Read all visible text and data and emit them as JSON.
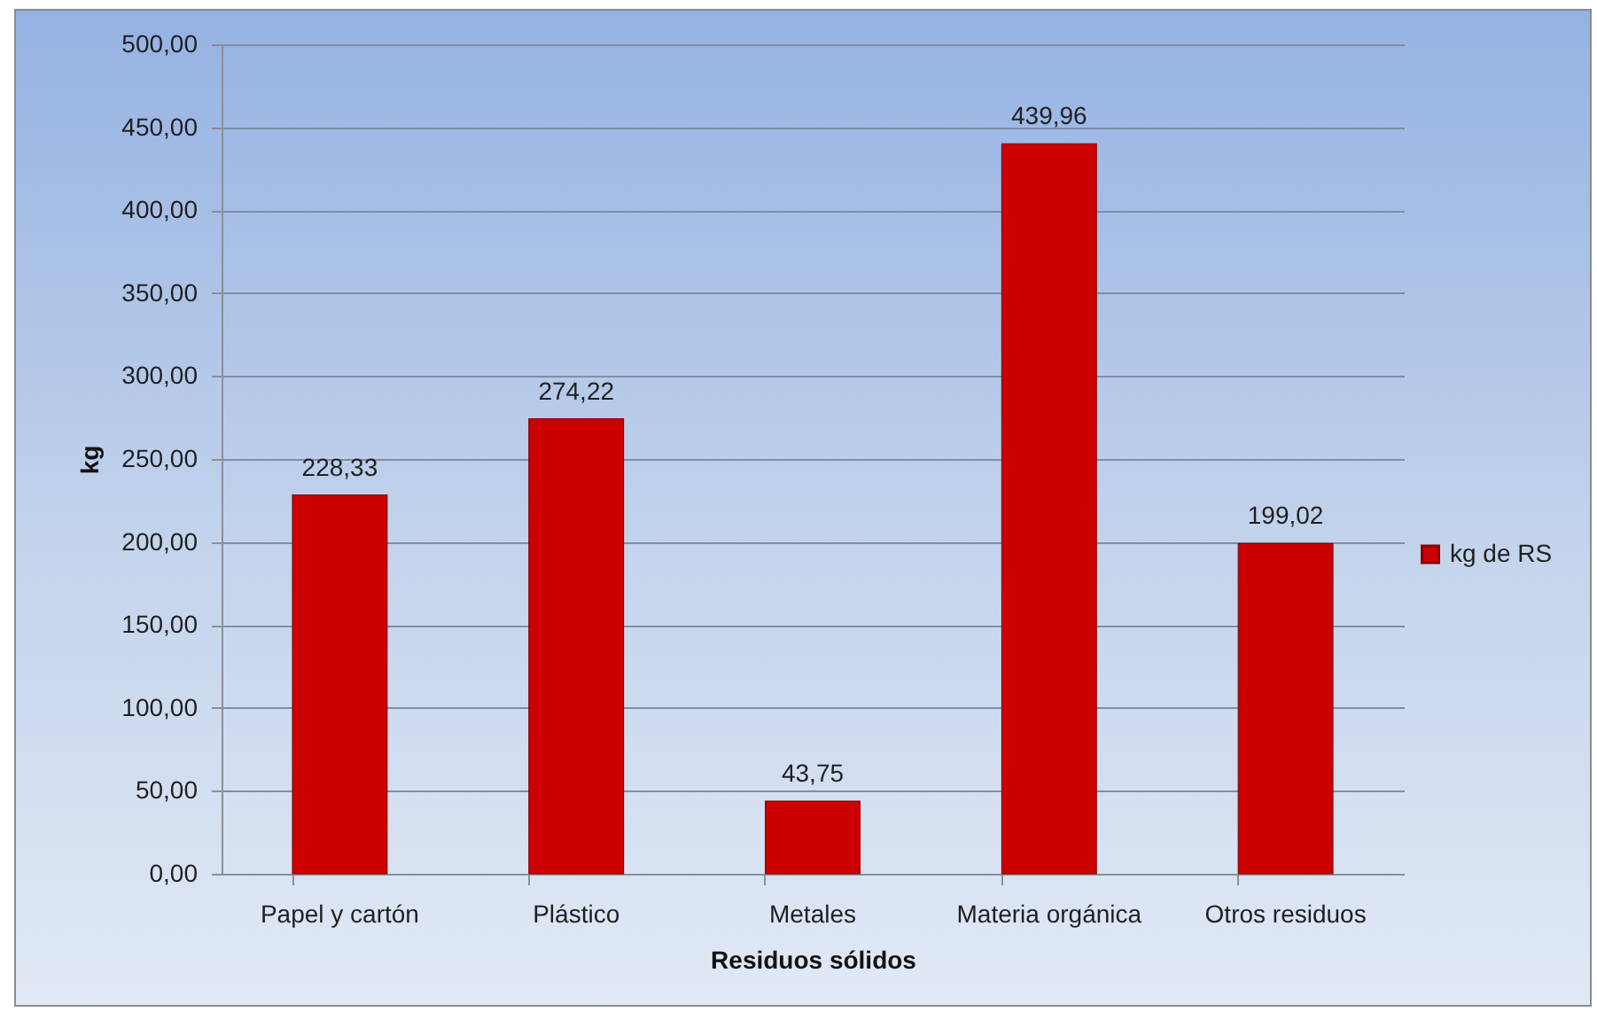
{
  "chart_data": {
    "type": "bar",
    "xlabel": "Residuos sólidos",
    "ylabel": "kg",
    "categories": [
      "Papel y cartón",
      "Plástico",
      "Metales",
      "Materia orgánica",
      "Otros residuos"
    ],
    "series": [
      {
        "name": "kg de RS",
        "color": "#cc0000",
        "values": [
          228.33,
          274.22,
          43.75,
          439.96,
          199.02
        ],
        "value_labels": [
          "228,33",
          "274,22",
          "43,75",
          "439,96",
          "199,02"
        ]
      }
    ],
    "ylim": [
      0,
      500
    ],
    "yticks": [
      {
        "value": 0,
        "label": "0,00"
      },
      {
        "value": 50,
        "label": "50,00"
      },
      {
        "value": 100,
        "label": "100,00"
      },
      {
        "value": 150,
        "label": "150,00"
      },
      {
        "value": 200,
        "label": "200,00"
      },
      {
        "value": 250,
        "label": "250,00"
      },
      {
        "value": 300,
        "label": "300,00"
      },
      {
        "value": 350,
        "label": "350,00"
      },
      {
        "value": 400,
        "label": "400,00"
      },
      {
        "value": 450,
        "label": "450,00"
      },
      {
        "value": 500,
        "label": "500,00"
      }
    ],
    "grid": "y",
    "legend": "right"
  }
}
